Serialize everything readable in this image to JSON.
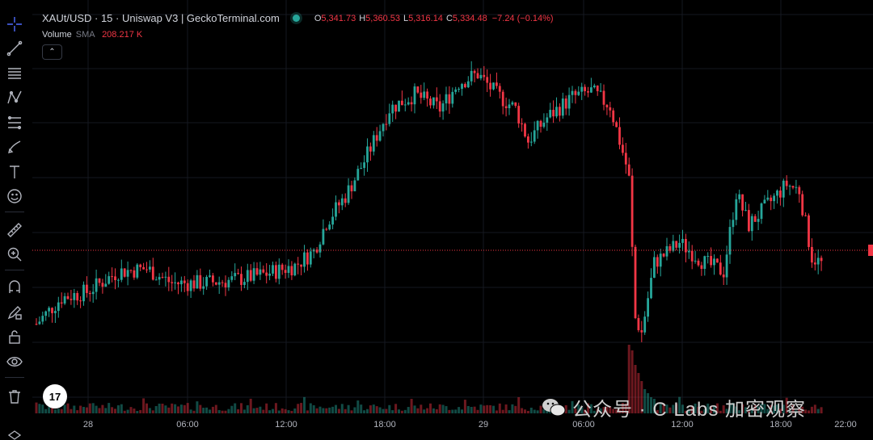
{
  "header": {
    "title": "XAUt/USD · 15 · Uniswap V3 | GeckoTerminal.com",
    "open_key": "O",
    "open": "5,341.73",
    "high_key": "H",
    "high": "5,360.53",
    "low_key": "L",
    "low": "5,316.14",
    "close_key": "C",
    "close": "5,334.48",
    "change": "−7.24 (−0.14%)"
  },
  "volume_legend": {
    "label": "Volume",
    "indicator": "SMA",
    "value": "208.217 K"
  },
  "collapse_symbol": "⌃",
  "logo_text": "17",
  "watermark": "公众号 · C Labs 加密观察",
  "colors": {
    "up": "#26a69a",
    "down": "#f23645",
    "background": "#000000",
    "grid": "#151820"
  },
  "toolbar_icons": [
    "crosshair-icon",
    "trend-line-icon",
    "horizontal-lines-icon",
    "pattern-icon",
    "fib-icon",
    "brush-icon",
    "text-icon",
    "emoji-icon",
    "ruler-icon",
    "zoom-icon",
    "magnet-icon",
    "pencil-lock-icon",
    "lock-icon",
    "eye-icon",
    "trash-icon"
  ],
  "chart_data": {
    "type": "candlestick",
    "x_ticks": [
      "28",
      "06:00",
      "12:00",
      "18:00",
      "29",
      "06:00",
      "12:00",
      "18:00",
      "22:00"
    ],
    "close_value": 5334.48,
    "anchors": [
      [
        0,
        0.08
      ],
      [
        8,
        0.17
      ],
      [
        16,
        0.19
      ],
      [
        26,
        0.26
      ],
      [
        35,
        0.27
      ],
      [
        43,
        0.22
      ],
      [
        52,
        0.22
      ],
      [
        62,
        0.23
      ],
      [
        72,
        0.25
      ],
      [
        82,
        0.28
      ],
      [
        88,
        0.33
      ],
      [
        92,
        0.43
      ],
      [
        98,
        0.52
      ],
      [
        104,
        0.64
      ],
      [
        112,
        0.82
      ],
      [
        120,
        0.87
      ],
      [
        128,
        0.82
      ],
      [
        134,
        0.91
      ],
      [
        140,
        0.94
      ],
      [
        146,
        0.87
      ],
      [
        152,
        0.82
      ],
      [
        156,
        0.71
      ],
      [
        162,
        0.79
      ],
      [
        170,
        0.86
      ],
      [
        176,
        0.88
      ],
      [
        182,
        0.83
      ],
      [
        188,
        0.59
      ],
      [
        190,
        0.1
      ],
      [
        192,
        0.05
      ],
      [
        196,
        0.29
      ],
      [
        204,
        0.36
      ],
      [
        212,
        0.29
      ],
      [
        218,
        0.26
      ],
      [
        222,
        0.53
      ],
      [
        226,
        0.42
      ],
      [
        232,
        0.49
      ],
      [
        238,
        0.56
      ],
      [
        242,
        0.54
      ],
      [
        246,
        0.31
      ],
      [
        250,
        0.28
      ]
    ]
  }
}
